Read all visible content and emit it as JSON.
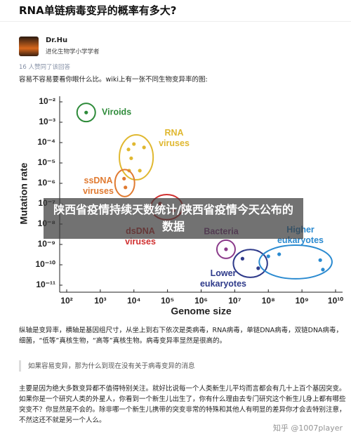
{
  "header": {
    "title": "RNA单链病毒变异的概率有多大?"
  },
  "author": {
    "name": "Dr.Hu",
    "bio": "进化生物学小学学者"
  },
  "answer": {
    "votes": "16 人赞同了该回答",
    "intro": "容易不容易要看你眼什么比。wiki上有一张不同生物变异率的图:",
    "caption": "纵轴是变异率，横轴是基因组尺寸，从坐上到右下依次是类病毒，RNA病毒，单链DNA病毒，双链DNA病毒，细菌，“低等”真核生物，“高等”真核生物。病毒变异率显然是很高的。",
    "quote": "如果容易变异，那为什么到现在没有关于病毒变异的消息",
    "body": "主要是因为绝大多数变异都不值得特别关注。就好比说每一个人类新生儿平均而言都会有几十上百个基因突变。如果你是一个研究人类的外星人，你看到一个新生儿出生了，你有什么理由去专门研究这个新生儿身上都有哪些突变不？你显然是不会的。除非哪一个新生儿携带的突变非常的特殊和其他人有明显的差异你才会去特别注意，不然这还不就是另一个人么。"
  },
  "overlay": {
    "headline": "陕西省疫情持续天数统计/陕西省疫情今天公布的数据"
  },
  "watermark": "知乎 @1007player",
  "chart_data": {
    "type": "scatter",
    "x_label": "Genome size",
    "y_label": "Mutation rate",
    "log_scale": true,
    "xlim": [
      100,
      10000000000
    ],
    "ylim": [
      1e-11,
      0.01
    ],
    "xticks": [
      {
        "value": 100,
        "label": "10²"
      },
      {
        "value": 1000,
        "label": "10³"
      },
      {
        "value": 10000,
        "label": "10⁴"
      },
      {
        "value": 100000,
        "label": "10⁵"
      },
      {
        "value": 1000000,
        "label": "10⁶"
      },
      {
        "value": 10000000,
        "label": "10⁷"
      },
      {
        "value": 100000000,
        "label": "10⁸"
      },
      {
        "value": 1000000000,
        "label": "10⁹"
      },
      {
        "value": 10000000000,
        "label": "10¹⁰"
      }
    ],
    "yticks": [
      {
        "value": 0.01,
        "label": "10⁻²"
      },
      {
        "value": 0.001,
        "label": "10⁻³"
      },
      {
        "value": 0.0001,
        "label": "10⁻⁴"
      },
      {
        "value": 1e-05,
        "label": "10⁻⁵"
      },
      {
        "value": 1e-06,
        "label": "10⁻⁶"
      },
      {
        "value": 1e-07,
        "label": "10⁻⁷"
      },
      {
        "value": 1e-08,
        "label": "10⁻⁸"
      },
      {
        "value": 1e-09,
        "label": "10⁻⁹"
      },
      {
        "value": 1e-10,
        "label": "10⁻¹⁰"
      },
      {
        "value": 1e-11,
        "label": "10⁻¹¹"
      }
    ],
    "series": [
      {
        "name": "Viroids",
        "color": "#2e8b3a",
        "x": [
          380
        ],
        "values": [
          0.003
        ]
      },
      {
        "name": "RNA viruses",
        "color": "#e0b830",
        "x": [
          6900,
          10000,
          20000,
          8300,
          15000,
          7200
        ],
        "values": [
          4.6e-05,
          8.5e-05,
          5.8e-05,
          1.7e-05,
          4.2e-06,
          4.2e-06
        ]
      },
      {
        "name": "ssDNA viruses",
        "color": "#e07a30",
        "x": [
          5100,
          5600
        ],
        "values": [
          1.7e-06,
          6.3e-07
        ]
      },
      {
        "name": "dsDNA viruses",
        "color": "#d03030",
        "x": [
          60000,
          150000
        ],
        "values": [
          1e-07,
          4.6e-08
        ]
      },
      {
        "name": "Bacteria",
        "color": "#8a3a8a",
        "x": [
          5500000
        ],
        "values": [
          5.8e-10
        ]
      },
      {
        "name": "Lower eukaryotes",
        "color": "#2e3a8a",
        "x": [
          17000000,
          50000000
        ],
        "values": [
          2e-10,
          6.8e-11
        ]
      },
      {
        "name": "Higher eukaryotes",
        "color": "#2a8ad0",
        "x": [
          100000000,
          210000000,
          3500000000,
          4200000000
        ],
        "values": [
          2.6e-10,
          3.3e-10,
          1.7e-10,
          5.8e-11
        ]
      }
    ]
  }
}
